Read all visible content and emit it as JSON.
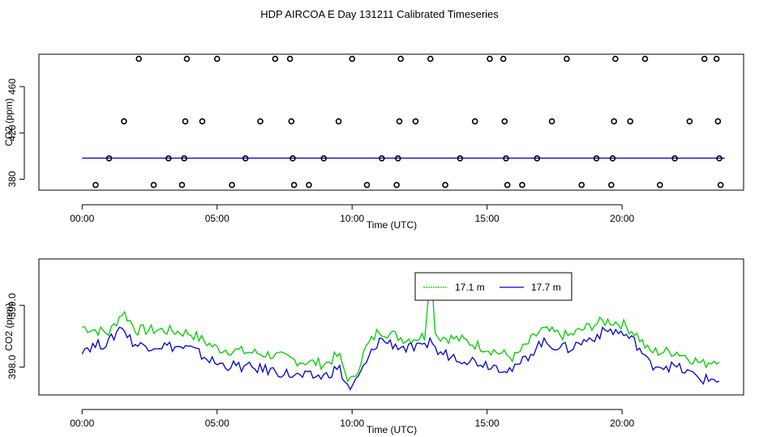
{
  "title": "HDP AIRCOA E  Day 131211  Calibrated Timeseries",
  "chart_data": [
    {
      "type": "scatter",
      "xlabel": "Time (UTC)",
      "ylabel": "CO2 (ppm)",
      "xlim": [
        -1.6,
        24.5
      ],
      "ylim": [
        370.5,
        488
      ],
      "xticks": [
        {
          "v": 0,
          "label": "00:00"
        },
        {
          "v": 5,
          "label": "05:00"
        },
        {
          "v": 10,
          "label": "10:00"
        },
        {
          "v": 15,
          "label": "15:00"
        },
        {
          "v": 20,
          "label": "20:00"
        }
      ],
      "yticks": [
        {
          "v": 380,
          "label": "380"
        },
        {
          "v": 420,
          "label": "420"
        },
        {
          "v": 460,
          "label": "460"
        }
      ],
      "line_value": 398.2,
      "line_color": "#0000cc",
      "points": [
        {
          "x": 0.5,
          "y": 375
        },
        {
          "x": 1.0,
          "y": 398
        },
        {
          "x": 1.55,
          "y": 430
        },
        {
          "x": 2.1,
          "y": 484
        },
        {
          "x": 2.65,
          "y": 375
        },
        {
          "x": 3.2,
          "y": 398
        },
        {
          "x": 3.7,
          "y": 375
        },
        {
          "x": 3.78,
          "y": 398
        },
        {
          "x": 3.82,
          "y": 430
        },
        {
          "x": 3.88,
          "y": 484
        },
        {
          "x": 4.45,
          "y": 430
        },
        {
          "x": 5.0,
          "y": 484
        },
        {
          "x": 5.55,
          "y": 375
        },
        {
          "x": 6.05,
          "y": 398
        },
        {
          "x": 6.6,
          "y": 430
        },
        {
          "x": 7.15,
          "y": 484
        },
        {
          "x": 7.7,
          "y": 484
        },
        {
          "x": 7.75,
          "y": 430
        },
        {
          "x": 7.8,
          "y": 398
        },
        {
          "x": 7.85,
          "y": 375
        },
        {
          "x": 8.4,
          "y": 375
        },
        {
          "x": 8.95,
          "y": 398
        },
        {
          "x": 9.5,
          "y": 430
        },
        {
          "x": 10.0,
          "y": 484
        },
        {
          "x": 10.55,
          "y": 375
        },
        {
          "x": 11.1,
          "y": 398
        },
        {
          "x": 11.65,
          "y": 375
        },
        {
          "x": 11.7,
          "y": 398
        },
        {
          "x": 11.75,
          "y": 430
        },
        {
          "x": 11.8,
          "y": 484
        },
        {
          "x": 12.35,
          "y": 430
        },
        {
          "x": 12.9,
          "y": 484
        },
        {
          "x": 13.45,
          "y": 375
        },
        {
          "x": 14.0,
          "y": 398
        },
        {
          "x": 14.55,
          "y": 430
        },
        {
          "x": 15.1,
          "y": 484
        },
        {
          "x": 15.6,
          "y": 484
        },
        {
          "x": 15.65,
          "y": 430
        },
        {
          "x": 15.7,
          "y": 398
        },
        {
          "x": 15.75,
          "y": 375
        },
        {
          "x": 16.3,
          "y": 375
        },
        {
          "x": 16.85,
          "y": 398
        },
        {
          "x": 17.4,
          "y": 430
        },
        {
          "x": 17.95,
          "y": 484
        },
        {
          "x": 18.5,
          "y": 375
        },
        {
          "x": 19.05,
          "y": 398
        },
        {
          "x": 19.6,
          "y": 375
        },
        {
          "x": 19.65,
          "y": 398
        },
        {
          "x": 19.7,
          "y": 430
        },
        {
          "x": 19.75,
          "y": 484
        },
        {
          "x": 20.3,
          "y": 430
        },
        {
          "x": 20.85,
          "y": 484
        },
        {
          "x": 21.4,
          "y": 375
        },
        {
          "x": 21.95,
          "y": 398
        },
        {
          "x": 22.5,
          "y": 430
        },
        {
          "x": 23.05,
          "y": 484
        },
        {
          "x": 23.5,
          "y": 484
        },
        {
          "x": 23.55,
          "y": 430
        },
        {
          "x": 23.6,
          "y": 398
        },
        {
          "x": 23.65,
          "y": 375
        }
      ]
    },
    {
      "type": "line",
      "xlabel": "Time (UTC)",
      "ylabel": "CO2 (ppm)",
      "xlim": [
        -1.6,
        24.5
      ],
      "ylim": [
        397.55,
        399.75
      ],
      "xticks": [
        {
          "v": 0,
          "label": "00:00"
        },
        {
          "v": 5,
          "label": "05:00"
        },
        {
          "v": 10,
          "label": "10:00"
        },
        {
          "v": 15,
          "label": "15:00"
        },
        {
          "v": 20,
          "label": "20:00"
        }
      ],
      "yticks": [
        {
          "v": 398,
          "label": "398.0"
        },
        {
          "v": 399,
          "label": "399.0"
        }
      ],
      "legend_position": "top-center",
      "series": [
        {
          "name": "17.1 m",
          "color": "#00cc00",
          "x": [
            0.0,
            1.0,
            1.5,
            1.6,
            2.0,
            3.0,
            4.0,
            5.0,
            6.0,
            7.0,
            8.0,
            9.0,
            9.5,
            9.8,
            10.0,
            10.5,
            11.0,
            12.0,
            12.7,
            12.9,
            13.1,
            14.0,
            15.0,
            16.0,
            17.0,
            18.0,
            19.0,
            19.5,
            20.0,
            20.5,
            21.0,
            22.0,
            23.0,
            23.6
          ],
          "y": [
            398.65,
            398.55,
            398.9,
            398.85,
            398.6,
            398.6,
            398.55,
            398.3,
            398.25,
            398.2,
            398.1,
            398.05,
            398.2,
            397.85,
            397.75,
            398.3,
            398.6,
            398.45,
            398.5,
            399.65,
            398.5,
            398.45,
            398.3,
            398.15,
            398.6,
            398.5,
            398.7,
            398.75,
            398.7,
            398.55,
            398.25,
            398.25,
            398.05,
            398.15
          ]
        },
        {
          "name": "17.7 m",
          "color": "#0000cc",
          "x": [
            0.0,
            1.0,
            1.5,
            1.6,
            2.0,
            3.0,
            4.0,
            5.0,
            6.0,
            7.0,
            8.0,
            9.0,
            9.5,
            9.8,
            10.0,
            10.5,
            11.0,
            12.0,
            12.7,
            12.9,
            13.1,
            14.0,
            15.0,
            16.0,
            17.0,
            18.0,
            19.0,
            19.5,
            20.0,
            20.5,
            21.0,
            22.0,
            23.0,
            23.6
          ],
          "y": [
            398.3,
            398.4,
            398.7,
            398.55,
            398.35,
            398.35,
            398.3,
            398.05,
            398.0,
            397.95,
            397.85,
            397.85,
            398.0,
            397.7,
            397.65,
            398.05,
            398.45,
            398.3,
            398.3,
            398.5,
            398.25,
            398.15,
            398.05,
            397.95,
            398.4,
            398.3,
            398.5,
            398.6,
            398.55,
            398.4,
            398.05,
            398.0,
            397.8,
            397.8
          ]
        }
      ]
    }
  ]
}
